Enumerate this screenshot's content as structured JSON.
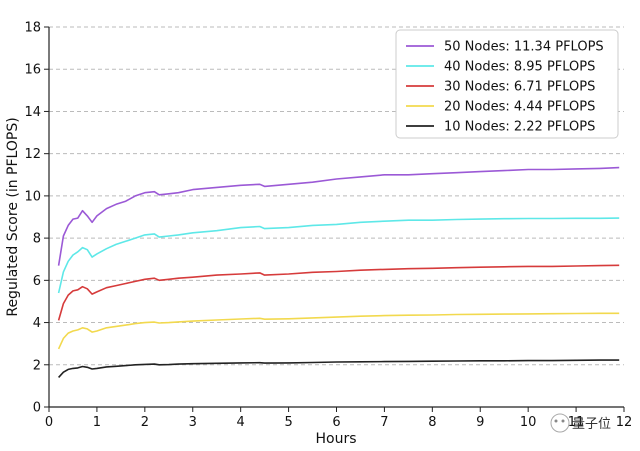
{
  "chart_data": {
    "type": "line",
    "title": "",
    "xlabel": "Hours",
    "ylabel": "Regulated Score (in PFLOPS)",
    "xlim": [
      0,
      12
    ],
    "ylim": [
      0,
      18
    ],
    "xticks": [
      "0",
      "1",
      "2",
      "3",
      "4",
      "5",
      "6",
      "7",
      "8",
      "9",
      "10",
      "11",
      "12"
    ],
    "yticks": [
      "0",
      "2",
      "4",
      "6",
      "8",
      "10",
      "12",
      "14",
      "16",
      "18"
    ],
    "grid": "horizontal dashed",
    "legend_position": "top-right",
    "watermark": "量子位",
    "series": [
      {
        "name": "50 Nodes: 11.34 PFLOPS",
        "color": "#9b59d6",
        "x": [
          0.2,
          0.3,
          0.4,
          0.5,
          0.6,
          0.7,
          0.8,
          0.9,
          1.0,
          1.2,
          1.4,
          1.6,
          1.8,
          2.0,
          2.2,
          2.3,
          2.5,
          2.7,
          3.0,
          3.5,
          4.0,
          4.4,
          4.5,
          5.0,
          5.5,
          6.0,
          6.5,
          7.0,
          7.5,
          8.0,
          8.5,
          9.0,
          9.5,
          10.0,
          10.5,
          11.0,
          11.5,
          11.9
        ],
        "y": [
          6.7,
          8.1,
          8.6,
          8.9,
          8.95,
          9.3,
          9.05,
          8.75,
          9.05,
          9.4,
          9.6,
          9.75,
          10.0,
          10.15,
          10.2,
          10.05,
          10.1,
          10.15,
          10.3,
          10.4,
          10.5,
          10.55,
          10.45,
          10.55,
          10.65,
          10.8,
          10.9,
          11.0,
          11.0,
          11.05,
          11.1,
          11.15,
          11.2,
          11.25,
          11.25,
          11.28,
          11.3,
          11.34
        ]
      },
      {
        "name": "40 Nodes: 8.95 PFLOPS",
        "color": "#5ee8e8",
        "x": [
          0.2,
          0.3,
          0.4,
          0.5,
          0.6,
          0.7,
          0.8,
          0.9,
          1.0,
          1.2,
          1.4,
          1.6,
          1.8,
          2.0,
          2.2,
          2.3,
          2.5,
          2.7,
          3.0,
          3.5,
          4.0,
          4.4,
          4.5,
          5.0,
          5.5,
          6.0,
          6.5,
          7.0,
          7.5,
          8.0,
          8.5,
          9.0,
          9.5,
          10.0,
          10.5,
          11.0,
          11.5,
          11.9
        ],
        "y": [
          5.4,
          6.4,
          6.9,
          7.2,
          7.35,
          7.55,
          7.45,
          7.1,
          7.25,
          7.5,
          7.7,
          7.85,
          8.0,
          8.15,
          8.2,
          8.05,
          8.1,
          8.15,
          8.25,
          8.35,
          8.5,
          8.55,
          8.45,
          8.5,
          8.6,
          8.65,
          8.75,
          8.8,
          8.85,
          8.85,
          8.88,
          8.9,
          8.92,
          8.93,
          8.93,
          8.94,
          8.94,
          8.95
        ]
      },
      {
        "name": "30 Nodes: 6.71 PFLOPS",
        "color": "#d63b3b",
        "x": [
          0.2,
          0.3,
          0.4,
          0.5,
          0.6,
          0.7,
          0.8,
          0.9,
          1.0,
          1.2,
          1.4,
          1.6,
          1.8,
          2.0,
          2.2,
          2.3,
          2.5,
          2.7,
          3.0,
          3.5,
          4.0,
          4.4,
          4.5,
          5.0,
          5.5,
          6.0,
          6.5,
          7.0,
          7.5,
          8.0,
          8.5,
          9.0,
          9.5,
          10.0,
          10.5,
          11.0,
          11.5,
          11.9
        ],
        "y": [
          4.1,
          4.9,
          5.3,
          5.5,
          5.55,
          5.7,
          5.6,
          5.35,
          5.45,
          5.65,
          5.75,
          5.85,
          5.95,
          6.05,
          6.1,
          6.0,
          6.05,
          6.1,
          6.15,
          6.25,
          6.3,
          6.35,
          6.25,
          6.3,
          6.38,
          6.42,
          6.48,
          6.52,
          6.55,
          6.57,
          6.6,
          6.62,
          6.64,
          6.66,
          6.66,
          6.68,
          6.7,
          6.71
        ]
      },
      {
        "name": "20 Nodes: 4.44 PFLOPS",
        "color": "#f2d94e",
        "x": [
          0.2,
          0.3,
          0.4,
          0.5,
          0.6,
          0.7,
          0.8,
          0.9,
          1.0,
          1.2,
          1.4,
          1.6,
          1.8,
          2.0,
          2.2,
          2.3,
          2.5,
          2.7,
          3.0,
          3.5,
          4.0,
          4.4,
          4.5,
          5.0,
          5.5,
          6.0,
          6.5,
          7.0,
          7.5,
          8.0,
          8.5,
          9.0,
          9.5,
          10.0,
          10.5,
          11.0,
          11.5,
          11.9
        ],
        "y": [
          2.75,
          3.25,
          3.5,
          3.6,
          3.65,
          3.75,
          3.7,
          3.55,
          3.6,
          3.75,
          3.82,
          3.88,
          3.95,
          4.0,
          4.02,
          3.98,
          4.0,
          4.03,
          4.07,
          4.12,
          4.17,
          4.2,
          4.16,
          4.18,
          4.22,
          4.26,
          4.3,
          4.33,
          4.35,
          4.36,
          4.38,
          4.39,
          4.4,
          4.41,
          4.42,
          4.43,
          4.44,
          4.44
        ]
      },
      {
        "name": "10 Nodes: 2.22 PFLOPS",
        "color": "#222222",
        "x": [
          0.2,
          0.3,
          0.4,
          0.5,
          0.6,
          0.7,
          0.8,
          0.9,
          1.0,
          1.2,
          1.4,
          1.6,
          1.8,
          2.0,
          2.2,
          2.3,
          2.5,
          2.7,
          3.0,
          3.5,
          4.0,
          4.4,
          4.5,
          5.0,
          5.5,
          6.0,
          6.5,
          7.0,
          7.5,
          8.0,
          8.5,
          9.0,
          9.5,
          10.0,
          10.5,
          11.0,
          11.5,
          11.9
        ],
        "y": [
          1.4,
          1.65,
          1.78,
          1.83,
          1.85,
          1.92,
          1.88,
          1.8,
          1.83,
          1.9,
          1.93,
          1.96,
          2.0,
          2.02,
          2.03,
          2.0,
          2.01,
          2.03,
          2.05,
          2.07,
          2.09,
          2.1,
          2.08,
          2.09,
          2.11,
          2.13,
          2.14,
          2.15,
          2.16,
          2.17,
          2.18,
          2.19,
          2.19,
          2.2,
          2.2,
          2.21,
          2.22,
          2.22
        ]
      }
    ]
  }
}
